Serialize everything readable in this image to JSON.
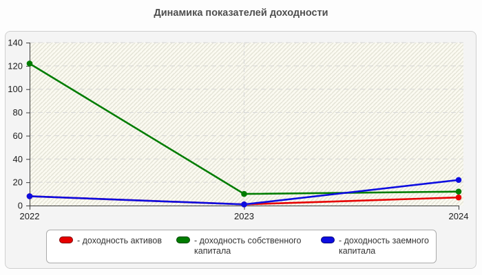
{
  "page": {
    "title": "Динамика показателей доходности"
  },
  "chart_data": {
    "type": "line",
    "title": "Динамика показателей доходности",
    "categories": [
      "2022",
      "2023",
      "2024"
    ],
    "series": [
      {
        "name": "доходность активов",
        "color": "#e60000",
        "values": [
          8,
          1,
          7
        ]
      },
      {
        "name": "доходность собственного капитала",
        "color": "#007c00",
        "values": [
          122,
          10,
          12
        ]
      },
      {
        "name": "доходность заемного капитала",
        "color": "#0d0de0",
        "values": [
          8,
          1,
          22
        ]
      }
    ],
    "legend_prefix": "- ",
    "ylim": [
      0,
      140
    ],
    "ytick_step": 20,
    "yticks": [
      0,
      20,
      40,
      60,
      80,
      100,
      120,
      140
    ],
    "grid": true,
    "grid_vertical_at": "2023",
    "legend_position": "bottom"
  }
}
